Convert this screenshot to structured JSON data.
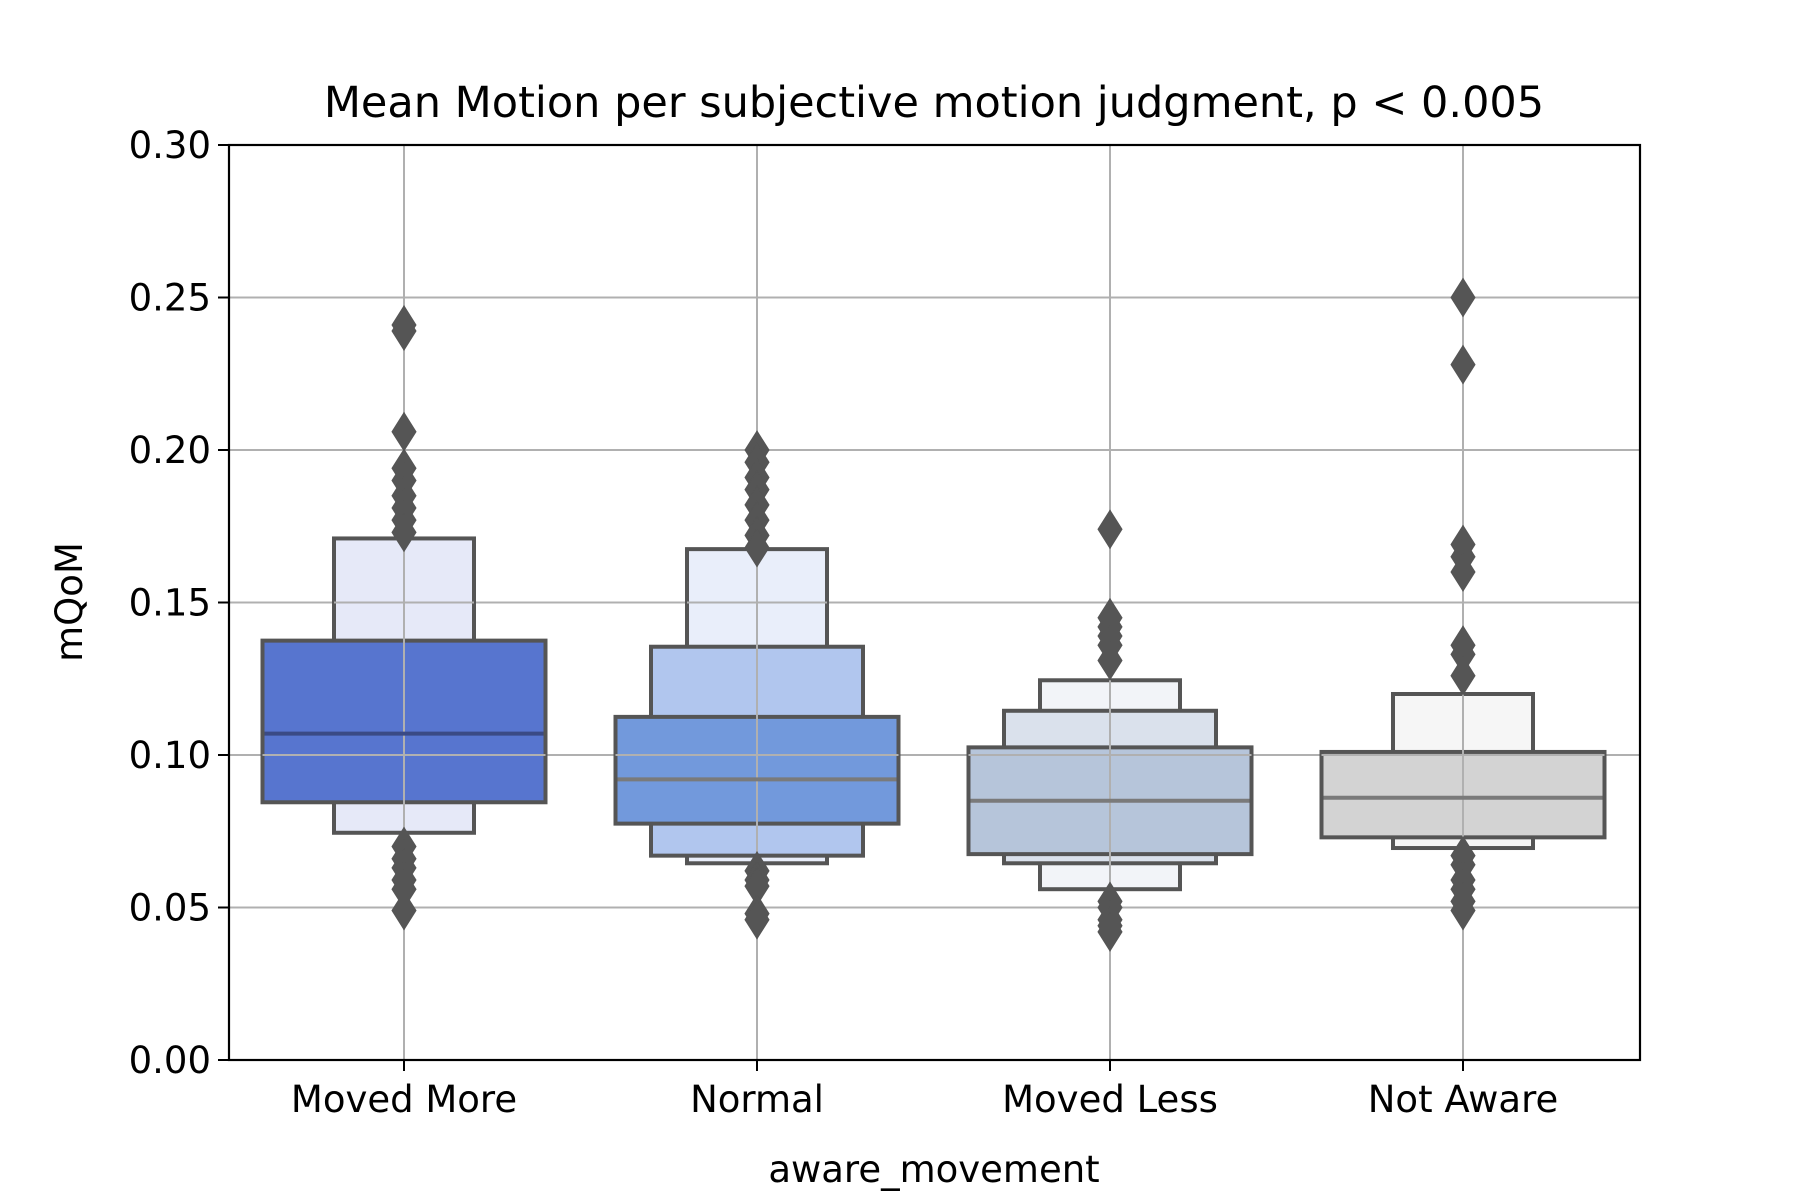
{
  "chart_data": {
    "type": "boxen",
    "title": "Mean Motion per subjective motion judgment, p < 0.005",
    "xlabel": "aware_movement",
    "ylabel": "mQoM",
    "ylim": [
      0,
      0.3
    ],
    "yticks": [
      "0.00",
      "0.05",
      "0.10",
      "0.15",
      "0.20",
      "0.25",
      "0.30"
    ],
    "ytick_values": [
      0,
      0.05,
      0.1,
      0.15,
      0.2,
      0.25,
      0.3
    ],
    "grid": true,
    "categories": [
      "Moved More",
      "Normal",
      "Moved Less",
      "Not Aware"
    ],
    "groups": [
      {
        "category": "Moved More",
        "median": 0.107,
        "boxes": [
          {
            "low": 0.0845,
            "high": 0.1375,
            "color": "#5775cf"
          },
          {
            "low": 0.0745,
            "high": 0.171,
            "color": "#e6e9f8"
          }
        ],
        "outliers": [
          0.241,
          0.239,
          0.206,
          0.194,
          0.19,
          0.185,
          0.181,
          0.177,
          0.173,
          0.07,
          0.066,
          0.063,
          0.059,
          0.056,
          0.049
        ]
      },
      {
        "category": "Normal",
        "median": 0.092,
        "boxes": [
          {
            "low": 0.0775,
            "high": 0.1125,
            "color": "#7299dc"
          },
          {
            "low": 0.067,
            "high": 0.1355,
            "color": "#b1c6ee"
          },
          {
            "low": 0.0645,
            "high": 0.1675,
            "color": "#e9eefa"
          }
        ],
        "outliers": [
          0.2,
          0.196,
          0.191,
          0.187,
          0.182,
          0.177,
          0.172,
          0.168,
          0.062,
          0.059,
          0.057,
          0.048,
          0.046
        ]
      },
      {
        "category": "Moved Less",
        "median": 0.085,
        "boxes": [
          {
            "low": 0.0675,
            "high": 0.1025,
            "color": "#b6c5da"
          },
          {
            "low": 0.0645,
            "high": 0.1145,
            "color": "#dae1ec"
          },
          {
            "low": 0.056,
            "high": 0.1245,
            "color": "#f2f4f8"
          }
        ],
        "outliers": [
          0.174,
          0.145,
          0.142,
          0.139,
          0.136,
          0.131,
          0.052,
          0.05,
          0.046,
          0.044,
          0.042
        ]
      },
      {
        "category": "Not Aware",
        "median": 0.086,
        "boxes": [
          {
            "low": 0.073,
            "high": 0.101,
            "color": "#d3d3d3"
          },
          {
            "low": 0.0695,
            "high": 0.12,
            "color": "#f6f6f6"
          }
        ],
        "outliers": [
          0.25,
          0.228,
          0.169,
          0.165,
          0.16,
          0.136,
          0.133,
          0.126,
          0.067,
          0.064,
          0.059,
          0.056,
          0.052,
          0.049
        ]
      }
    ],
    "colors": {
      "edge": "#555555",
      "median_dark": "#3a4a85",
      "median_light": "#7a7a7a",
      "grid": "#b0b0b0",
      "axis": "#000000",
      "outlier": "#555555"
    }
  }
}
